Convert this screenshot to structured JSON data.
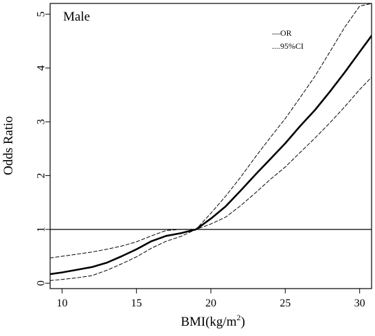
{
  "chart_data": {
    "type": "line",
    "panel_label": "Male",
    "xlabel_main": "BMI(kg/m",
    "xlabel_sup": "2",
    "xlabel_end": ")",
    "ylabel": "Odds Ratio",
    "xlim": [
      9.2,
      30.8
    ],
    "ylim": [
      -0.1,
      5.2
    ],
    "x_ticks": [
      10,
      15,
      20,
      25,
      30
    ],
    "y_ticks": [
      0,
      1,
      2,
      3,
      4,
      5
    ],
    "reference_line": 1,
    "legend": {
      "position": "top-right",
      "entries": [
        {
          "marker": "—",
          "label": "OR"
        },
        {
          "marker": "....",
          "label": "95%CI"
        }
      ]
    },
    "series": [
      {
        "name": "OR",
        "style": "solid",
        "x": [
          9.2,
          10,
          11,
          12,
          13,
          14,
          15,
          16,
          17,
          18,
          19,
          20,
          21,
          22,
          23,
          24,
          25,
          26,
          27,
          28,
          29,
          30,
          30.8
        ],
        "y": [
          0.17,
          0.2,
          0.25,
          0.3,
          0.38,
          0.5,
          0.63,
          0.78,
          0.88,
          0.93,
          1.0,
          1.2,
          1.43,
          1.72,
          2.02,
          2.31,
          2.6,
          2.92,
          3.22,
          3.56,
          3.92,
          4.3,
          4.6
        ]
      },
      {
        "name": "95%CI",
        "style": "dashed",
        "x": [
          9.2,
          10,
          11,
          12,
          13,
          14,
          15,
          16,
          17,
          18,
          19,
          20,
          21,
          22,
          23,
          24,
          25,
          26,
          27,
          28,
          29,
          30,
          30.8
        ],
        "y": [
          0.47,
          0.5,
          0.54,
          0.58,
          0.63,
          0.69,
          0.77,
          0.88,
          0.98,
          1.0,
          1.0,
          1.3,
          1.62,
          1.97,
          2.35,
          2.71,
          3.06,
          3.45,
          3.85,
          4.3,
          4.76,
          5.15,
          5.2
        ]
      },
      {
        "name": "",
        "style": "dashed",
        "x": [
          9.2,
          10,
          11,
          12,
          13,
          14,
          15,
          16,
          17,
          18,
          19,
          20,
          21,
          22,
          23,
          24,
          25,
          26,
          27,
          28,
          29,
          30,
          30.8
        ],
        "y": [
          0.05,
          0.07,
          0.1,
          0.14,
          0.24,
          0.36,
          0.49,
          0.65,
          0.78,
          0.87,
          1.0,
          1.1,
          1.23,
          1.44,
          1.68,
          1.93,
          2.16,
          2.43,
          2.7,
          2.98,
          3.28,
          3.6,
          3.83
        ]
      }
    ]
  }
}
